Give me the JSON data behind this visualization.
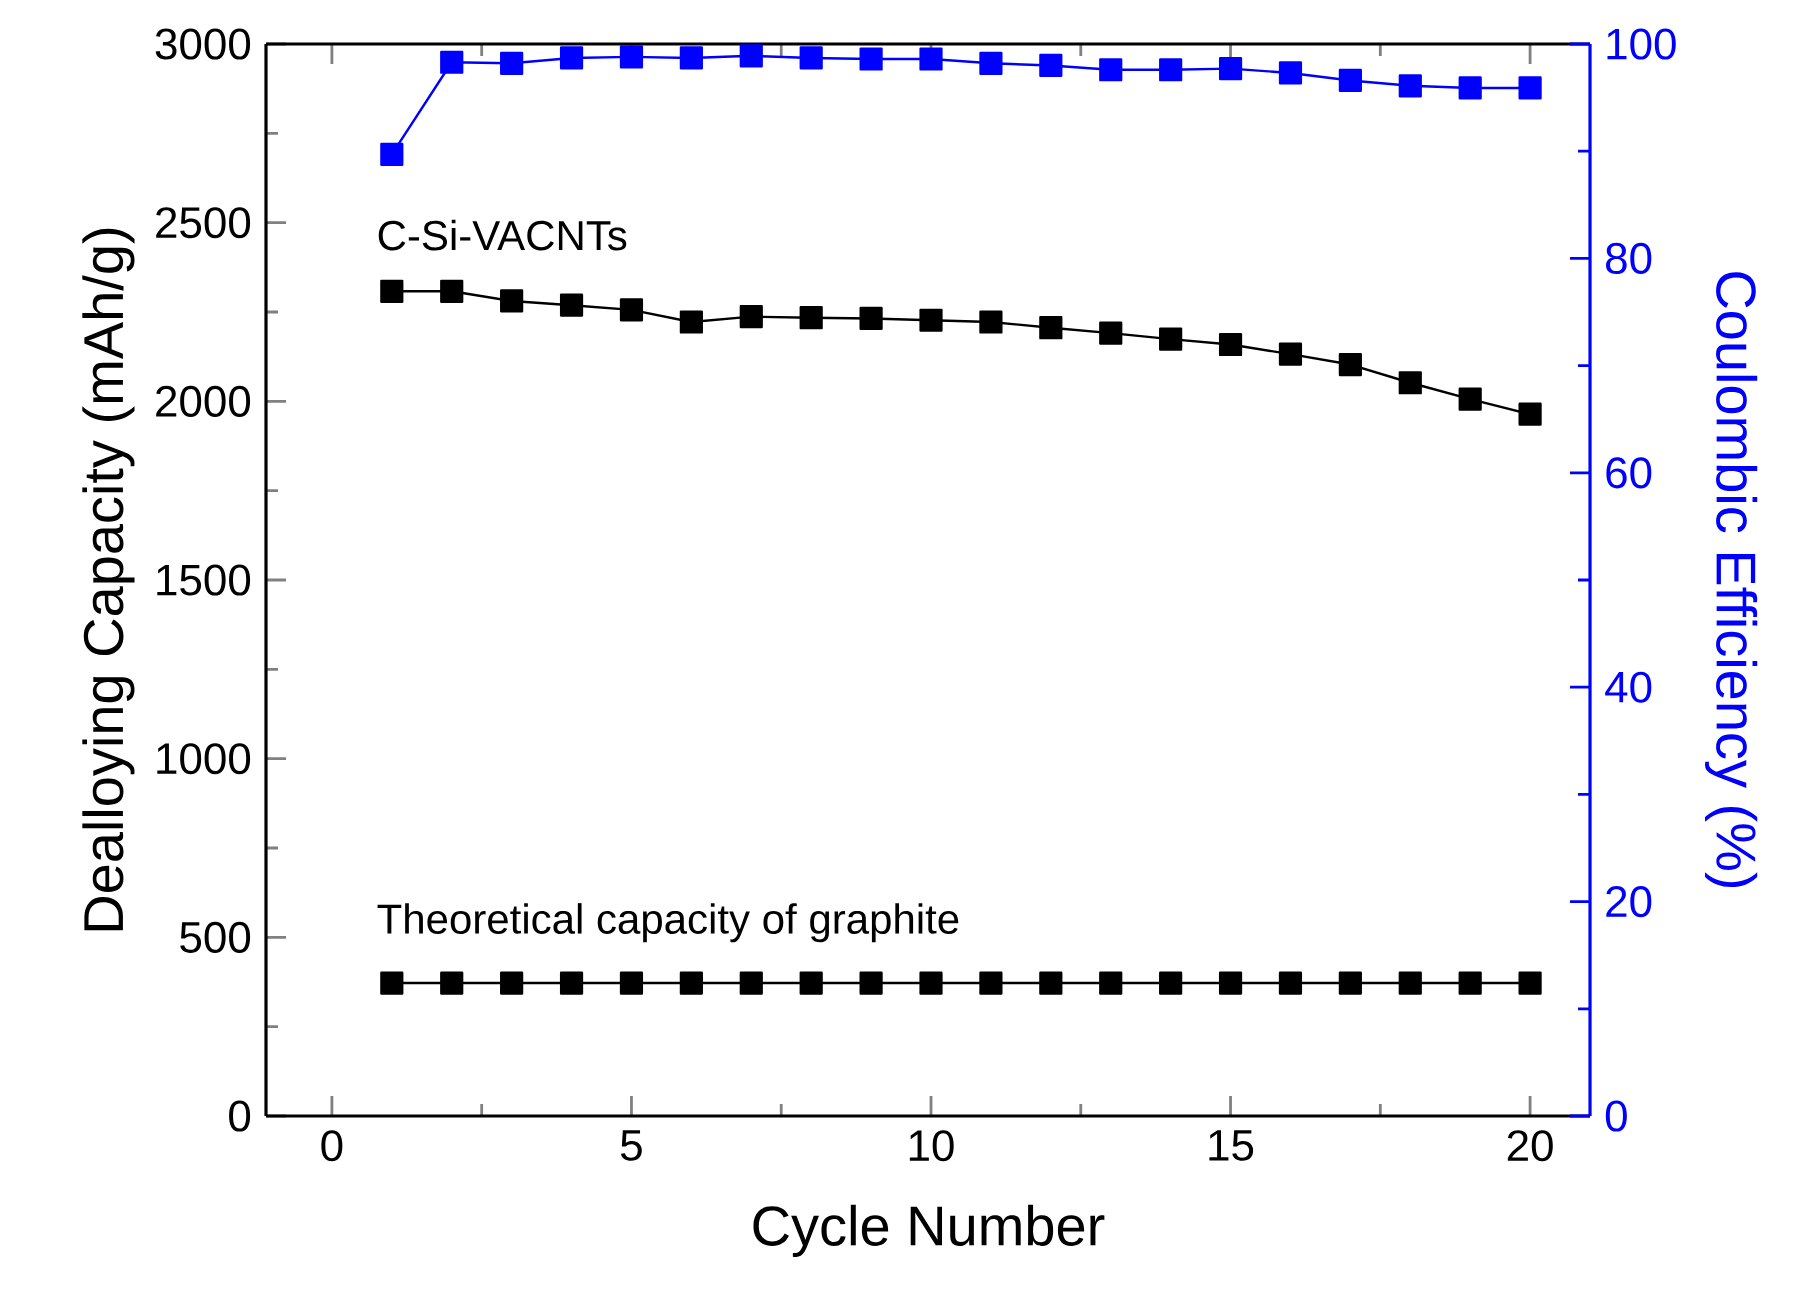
{
  "chart_data": {
    "type": "line",
    "xlabel": "Cycle Number",
    "ylabel": "Dealloying Capacity (mAh/g)",
    "y2label": "Coulombic Efficiency (%)",
    "x": [
      1,
      2,
      3,
      4,
      5,
      6,
      7,
      8,
      9,
      10,
      11,
      12,
      13,
      14,
      15,
      16,
      17,
      18,
      19,
      20
    ],
    "series": [
      {
        "color": "#000000",
        "values": [
          2308,
          2308,
          2281,
          2269,
          2256,
          2222,
          2237,
          2234,
          2232,
          2227,
          2222,
          2206,
          2191,
          2174,
          2159,
          2132,
          2103,
          2052,
          2006,
          1964
        ]
      },
      {
        "color": "#000000",
        "values": [
          372,
          372,
          372,
          372,
          372,
          372,
          372,
          372,
          372,
          372,
          372,
          372,
          372,
          372,
          372,
          372,
          372,
          372,
          372,
          372
        ]
      },
      {
        "color": "#0000ff",
        "axis": "y2",
        "values": [
          89.7,
          98.3,
          98.2,
          98.7,
          98.8,
          98.7,
          98.9,
          98.7,
          98.6,
          98.6,
          98.2,
          98.0,
          97.6,
          97.6,
          97.7,
          97.3,
          96.6,
          96.1,
          95.9,
          95.9
        ]
      }
    ],
    "annotations": [
      "C-Si-VACNTs",
      "Theoretical capacity of graphite"
    ],
    "xlim": [
      -1.1,
      21
    ],
    "xticks": [
      0,
      {
        "value": 2.5,
        "label": null
      },
      5,
      {
        "value": 7.5,
        "label": null
      },
      10,
      {
        "value": 12.5,
        "label": null
      },
      15,
      {
        "value": 17.5,
        "label": null
      },
      20
    ],
    "ylim": [
      0,
      3000
    ],
    "yticks": [
      0,
      {
        "value": 250,
        "label": null
      },
      500,
      {
        "value": 750,
        "label": null
      },
      1000,
      {
        "value": 1250,
        "label": null
      },
      1500,
      {
        "value": 1750,
        "label": null
      },
      2000,
      {
        "value": 2250,
        "label": null
      },
      2500,
      {
        "value": 2750,
        "label": null
      },
      3000
    ],
    "y2lim": [
      0,
      100
    ],
    "y2ticks": [
      0,
      {
        "value": 10,
        "label": null
      },
      20,
      {
        "value": 30,
        "label": null
      },
      40,
      {
        "value": 50,
        "label": null
      },
      60,
      {
        "value": 70,
        "label": null
      },
      80,
      {
        "value": 90,
        "label": null
      },
      100
    ],
    "marker": "square",
    "line_style": "solid"
  }
}
